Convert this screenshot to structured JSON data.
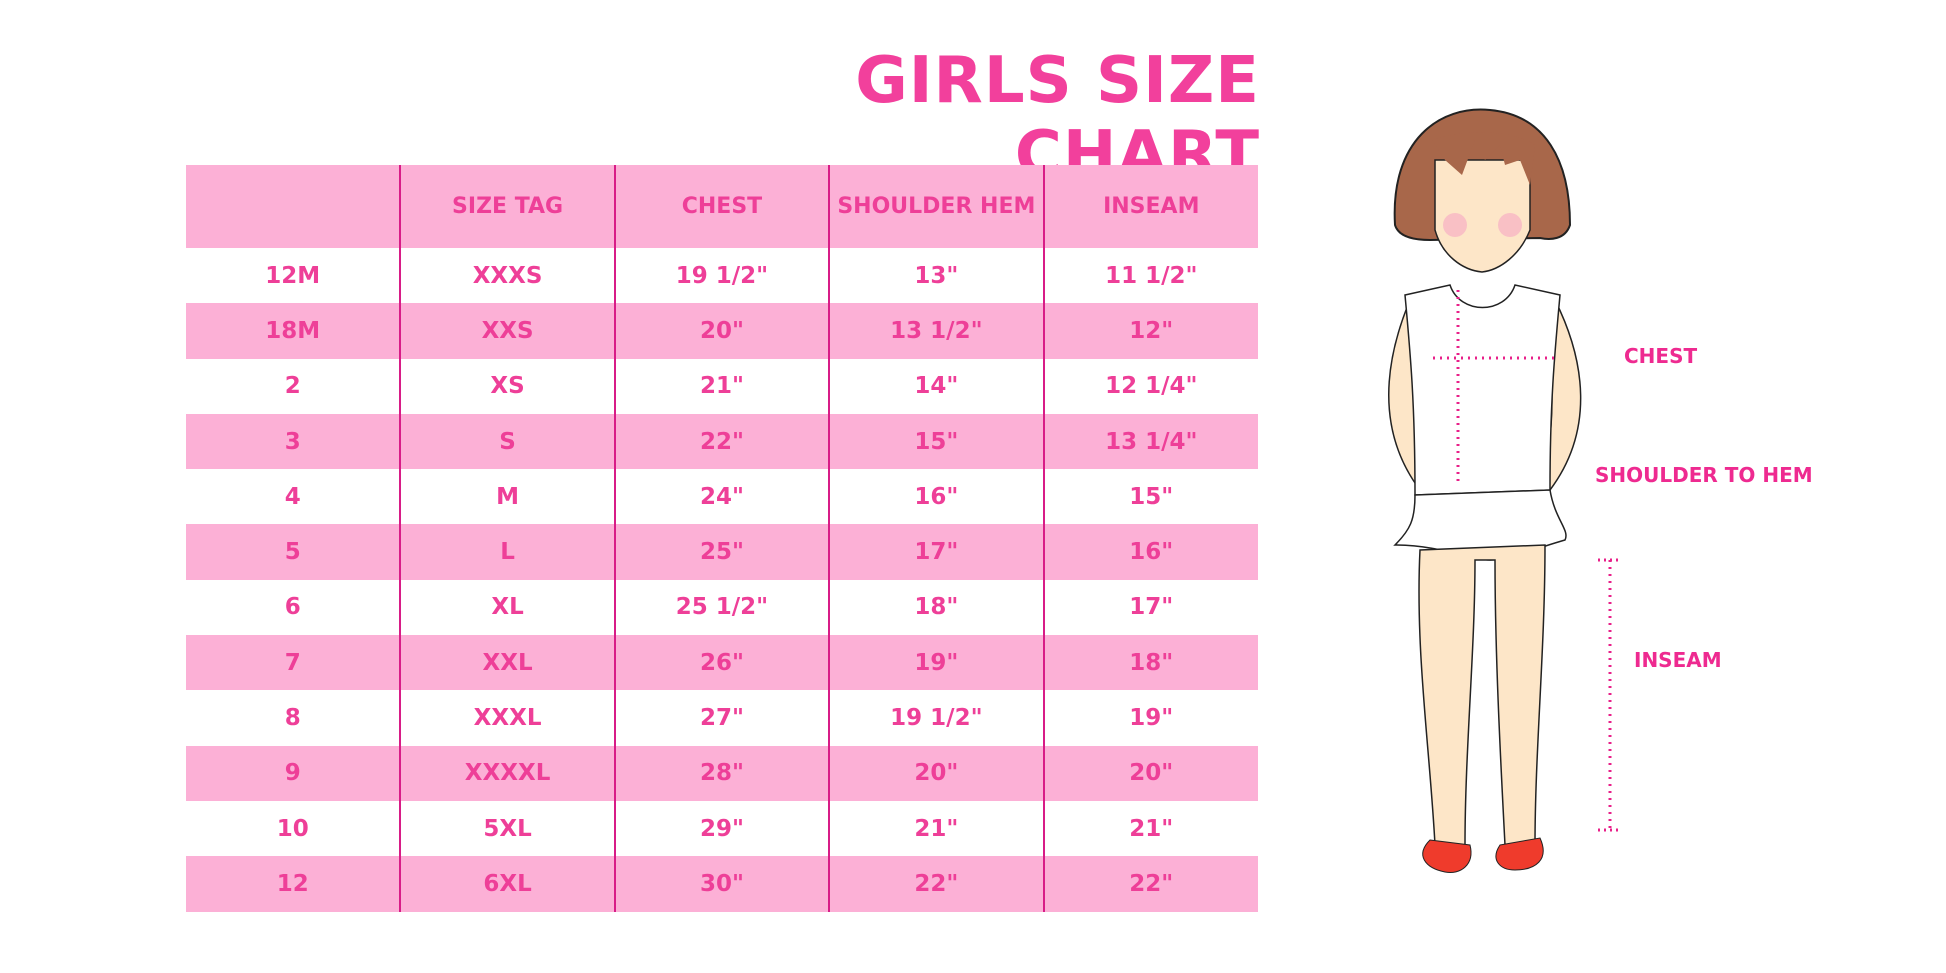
{
  "title": "GIRLS SIZE CHART",
  "columns": [
    "",
    "SIZE TAG",
    "CHEST",
    "SHOULDER HEM",
    "INSEAM"
  ],
  "rows": [
    [
      "12M",
      "XXXS",
      "19 1/2\"",
      "13\"",
      "11 1/2\""
    ],
    [
      "18M",
      "XXS",
      "20\"",
      "13 1/2\"",
      "12\""
    ],
    [
      "2",
      "XS",
      "21\"",
      "14\"",
      "12 1/4\""
    ],
    [
      "3",
      "S",
      "22\"",
      "15\"",
      "13 1/4\""
    ],
    [
      "4",
      "M",
      "24\"",
      "16\"",
      "15\""
    ],
    [
      "5",
      "L",
      "25\"",
      "17\"",
      "16\""
    ],
    [
      "6",
      "XL",
      "25 1/2\"",
      "18\"",
      "17\""
    ],
    [
      "7",
      "XXL",
      "26\"",
      "19\"",
      "18\""
    ],
    [
      "8",
      "XXXL",
      "27\"",
      "19 1/2\"",
      "19\""
    ],
    [
      "9",
      "XXXXL",
      "28\"",
      "20\"",
      "20\""
    ],
    [
      "10",
      "5XL",
      "29\"",
      "21\"",
      "21\""
    ],
    [
      "12",
      "6XL",
      "30\"",
      "22\"",
      "22\""
    ]
  ],
  "figure_labels": {
    "chest": "CHEST",
    "shoulder_to_hem": "SHOULDER TO HEM",
    "inseam": "INSEAM"
  },
  "colors": {
    "accent": "#ee3f98",
    "row_pink": "#fcb0d6",
    "divider": "#d81c87"
  }
}
